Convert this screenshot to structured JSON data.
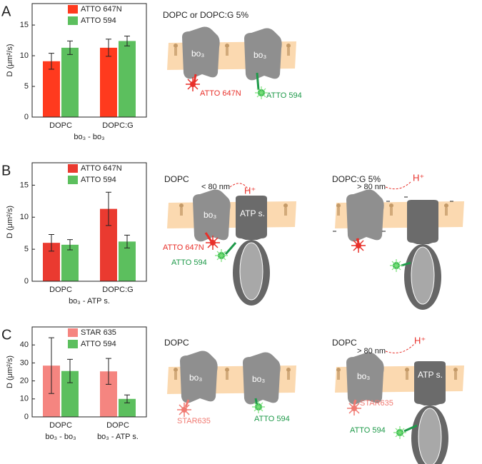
{
  "chart_data": [
    {
      "type": "bar",
      "panel": "A",
      "ylabel": "D (μm²/s)",
      "categories": [
        "DOPC",
        "DOPC:G"
      ],
      "xlabel": "bo₃ - bo₃",
      "series": [
        {
          "name": "ATTO 647N",
          "color": "#ff3a1e",
          "values": [
            9.1,
            11.3
          ],
          "errors": [
            1.3,
            1.4
          ]
        },
        {
          "name": "ATTO 594",
          "color": "#5cbf5e",
          "values": [
            11.3,
            12.4
          ],
          "errors": [
            1.1,
            0.8
          ]
        }
      ],
      "ylim": [
        0,
        18.5
      ],
      "yticks": [
        0,
        5,
        10,
        15
      ]
    },
    {
      "type": "bar",
      "panel": "B",
      "ylabel": "D (μm²/s)",
      "categories": [
        "DOPC",
        "DOPC:G"
      ],
      "xlabel": "bo₃ - ATP s.",
      "series": [
        {
          "name": "ATTO 647N",
          "color": "#ea3a30",
          "values": [
            6.0,
            11.3
          ],
          "errors": [
            1.3,
            2.6
          ]
        },
        {
          "name": "ATTO 594",
          "color": "#5cbf5e",
          "values": [
            5.7,
            6.2
          ],
          "errors": [
            0.8,
            1.0
          ]
        }
      ],
      "ylim": [
        0,
        18.5
      ],
      "yticks": [
        0,
        5,
        10,
        15
      ]
    },
    {
      "type": "bar",
      "panel": "C",
      "ylabel": "D (μm²/s)",
      "categories": [
        "DOPC",
        "DOPC"
      ],
      "xlabels": [
        "bo₃ - bo₃",
        "bo₃ - ATP s."
      ],
      "series": [
        {
          "name": "STAR 635",
          "color": "#f58580",
          "values": [
            28.5,
            25.3
          ],
          "errors": [
            15.5,
            7.2
          ]
        },
        {
          "name": "ATTO 594",
          "color": "#5cbf5e",
          "values": [
            25.5,
            10.0
          ],
          "errors": [
            6.5,
            2.2
          ]
        }
      ],
      "ylim": [
        0,
        50
      ],
      "yticks": [
        0,
        10,
        20,
        30,
        40
      ]
    }
  ],
  "diagrams": [
    {
      "texts": [
        "DOPC or DOPC:G 5%",
        "bo₃",
        "bo₃",
        "ATTO 647N",
        "ATTO 594"
      ]
    },
    {
      "texts": [
        "DOPC",
        "< 80 nm",
        "H⁺",
        "bo₃",
        "ATP s.",
        "ATTO 647N",
        "ATTO 594"
      ]
    },
    {
      "texts": [
        "DOPC:G 5%",
        "> 80 nm",
        "H⁺"
      ]
    },
    {
      "texts": [
        "DOPC",
        "bo₃",
        "bo₃",
        "STAR635",
        "ATTO 594"
      ]
    },
    {
      "texts": [
        "DOPC",
        "> 80 nm",
        "H⁺",
        "bo₃",
        "ATP s.",
        "STAR635",
        "ATTO 594"
      ]
    }
  ]
}
